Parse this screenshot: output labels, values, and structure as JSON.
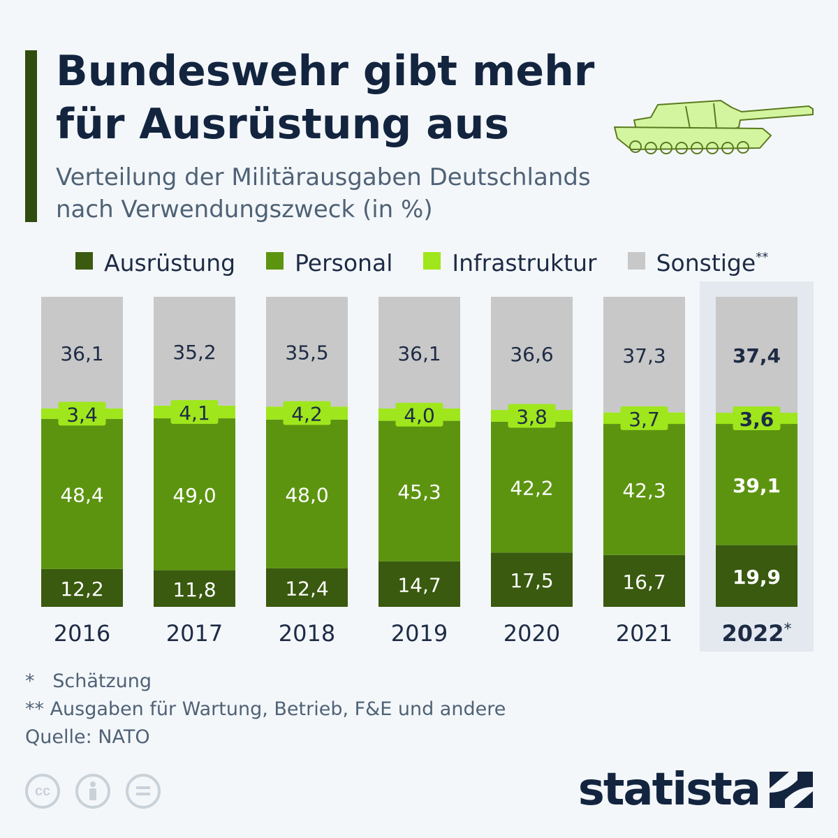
{
  "title_lines": [
    "Bundeswehr gibt mehr",
    "für Ausrüstung aus"
  ],
  "subtitle_lines": [
    "Verteilung der Militärausgaben Deutschlands",
    "nach Verwendungszweck (in %)"
  ],
  "colors": {
    "ausruestung": "#395a0f",
    "personal": "#5c9410",
    "infrastruktur": "#9fe61c",
    "sonstige": "#c8c8c8",
    "highlight": "#e3e9ef",
    "text_dark": "#1d2b45",
    "text_light": "#ffffff"
  },
  "legend": [
    {
      "label": "Ausrüstung",
      "sup": "",
      "color": "#395a0f"
    },
    {
      "label": "Personal",
      "sup": "",
      "color": "#5c9410"
    },
    {
      "label": "Infrastruktur",
      "sup": "",
      "color": "#9fe61c"
    },
    {
      "label": "Sonstige",
      "sup": "**",
      "color": "#c8c8c8"
    }
  ],
  "chart_data": {
    "type": "bar",
    "stacked": true,
    "categories": [
      "2016",
      "2017",
      "2018",
      "2019",
      "2020",
      "2021",
      "2022"
    ],
    "category_suffix": [
      "",
      "",
      "",
      "",
      "",
      "",
      "*"
    ],
    "highlight_category": "2022",
    "series": [
      {
        "name": "Ausrüstung",
        "values": [
          12.2,
          11.8,
          12.4,
          14.7,
          17.5,
          16.7,
          19.9
        ],
        "labels": [
          "12,2",
          "11,8",
          "12,4",
          "14,7",
          "17,5",
          "16,7",
          "19,9"
        ]
      },
      {
        "name": "Personal",
        "values": [
          48.4,
          49.0,
          48.0,
          45.3,
          42.2,
          42.3,
          39.1
        ],
        "labels": [
          "48,4",
          "49,0",
          "48,0",
          "45,3",
          "42,2",
          "42,3",
          "39,1"
        ]
      },
      {
        "name": "Infrastruktur",
        "values": [
          3.4,
          4.1,
          4.2,
          4.0,
          3.8,
          3.7,
          3.6
        ],
        "labels": [
          "3,4",
          "4,1",
          "4,2",
          "4,0",
          "3,8",
          "3,7",
          "3,6"
        ]
      },
      {
        "name": "Sonstige",
        "values": [
          36.1,
          35.2,
          35.5,
          36.1,
          36.6,
          37.3,
          37.4
        ],
        "labels": [
          "36,1",
          "35,2",
          "35,5",
          "36,1",
          "36,6",
          "37,3",
          "37,4"
        ]
      }
    ],
    "ylim": [
      0,
      100
    ],
    "unit": "%"
  },
  "footnotes": [
    "*   Schätzung",
    "** Ausgaben für Wartung, Betrieb, F&E und andere",
    "Quelle: NATO"
  ],
  "license_icons": [
    "cc-icon",
    "attribution-icon",
    "no-derivatives-icon"
  ],
  "brand": "statista"
}
